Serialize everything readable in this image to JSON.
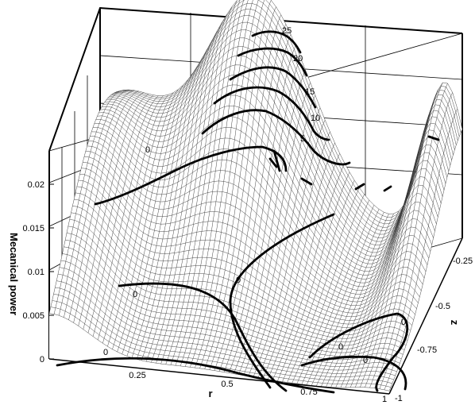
{
  "chart_data": {
    "type": "surface",
    "title": "",
    "xlabel": "r",
    "ylabel": "z",
    "zlabel": "Mecanical power",
    "xlim": [
      0,
      1
    ],
    "ylim": [
      -1,
      -0.25
    ],
    "zlim": [
      0,
      0.025
    ],
    "x_ticks": [
      "0.25",
      "0.5",
      "0.75",
      "1"
    ],
    "y_ticks": [
      "-0.25",
      "-0.5",
      "-0.75",
      "-1"
    ],
    "z_ticks": [
      "0",
      "0.005",
      "0.01",
      "0.015",
      "0.02"
    ],
    "grid": true,
    "surface_peaks": [
      {
        "r": 0.4,
        "z": -0.25,
        "value": 0.032
      },
      {
        "r": 0.95,
        "z": -0.25,
        "value": 0.022
      },
      {
        "r": 0.0,
        "z": -0.5,
        "value": 0.018
      }
    ],
    "contour_labels": [
      "0",
      "0",
      "0",
      "0",
      "0",
      "0",
      "5",
      "10",
      "15",
      "20",
      "25"
    ]
  }
}
